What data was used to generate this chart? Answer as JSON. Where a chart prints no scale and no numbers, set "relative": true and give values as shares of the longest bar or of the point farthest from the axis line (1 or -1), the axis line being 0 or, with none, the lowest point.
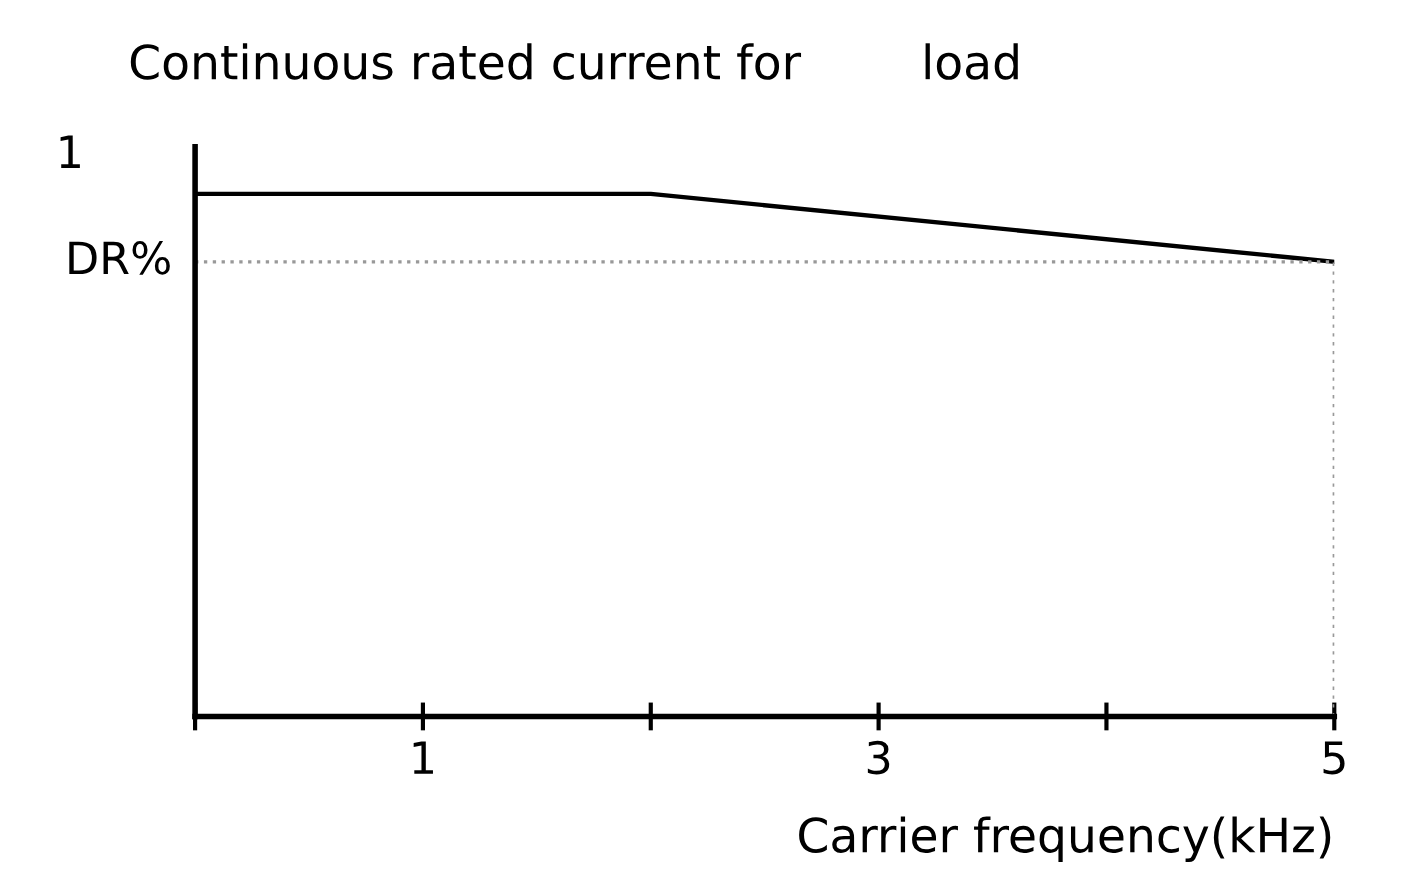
{
  "chart_data": {
    "type": "line",
    "title": "Continuous rated current for        load",
    "xlabel": "Carrier frequency(kHz)",
    "relative": true,
    "x": [
      0,
      2,
      5
    ],
    "series": [
      {
        "color": "#000000",
        "values": [
          1,
          1,
          0.87
        ]
      }
    ],
    "xlim": [
      0,
      5
    ],
    "xticks": [
      {
        "value": 0,
        "label": null
      },
      1,
      {
        "value": 2,
        "label": null
      },
      3,
      {
        "value": 4,
        "label": null
      },
      5
    ],
    "ref_lines": [
      {
        "axis": "y",
        "value": 0.87,
        "label": "DR%",
        "color": "#999999",
        "line_style": "dotted"
      },
      {
        "axis": "x",
        "value": 5,
        "color": "#999999",
        "line_style": "dotted"
      }
    ],
    "annotations": [
      {
        "text": "1",
        "x": 0,
        "y": 1
      }
    ],
    "grid": false,
    "legend": false,
    "marker": "none",
    "line_style": "solid"
  }
}
